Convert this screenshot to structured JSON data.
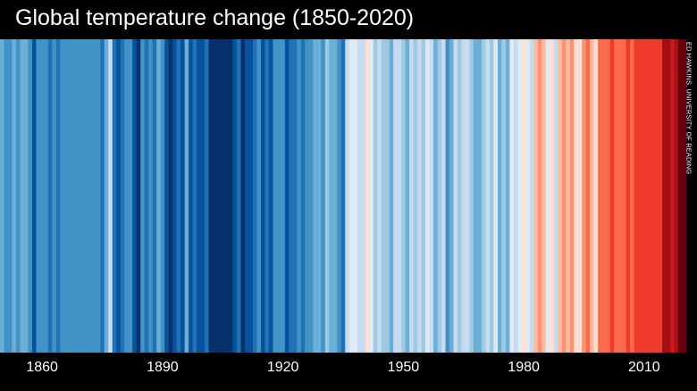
{
  "title": "Global temperature change (1850-2020)",
  "credit": "ED HAWKINS, UNIVERSITY OF READING",
  "chart_data": {
    "type": "heatmap",
    "title": "Global temperature change (1850-2020)",
    "xlabel": "",
    "ylabel": "",
    "x_start": 1850,
    "x_end": 2020,
    "xticks": [
      1860,
      1890,
      1920,
      1950,
      1980,
      2010
    ],
    "color_scale": [
      "#08306b",
      "#08519c",
      "#2171b5",
      "#4292c6",
      "#6baed6",
      "#9ecae1",
      "#c6dbef",
      "#deebf7",
      "#fee0d2",
      "#fcbba1",
      "#fc9272",
      "#fb6a4a",
      "#ef3b2c",
      "#cb181d",
      "#a50f15",
      "#67000d"
    ],
    "value_range": [
      0,
      15
    ],
    "values": [
      4,
      3,
      3,
      4,
      3,
      4,
      4,
      3,
      1,
      3,
      3,
      3,
      2,
      3,
      2,
      3,
      3,
      3,
      3,
      3,
      3,
      3,
      3,
      3,
      3,
      2,
      4,
      6,
      2,
      1,
      2,
      3,
      3,
      1,
      0,
      3,
      2,
      3,
      2,
      4,
      3,
      1,
      0,
      1,
      2,
      1,
      4,
      1,
      2,
      1,
      1,
      2,
      0,
      0,
      0,
      0,
      0,
      0,
      1,
      2,
      0,
      1,
      1,
      2,
      3,
      1,
      2,
      1,
      3,
      3,
      3,
      1,
      2,
      2,
      3,
      2,
      3,
      3,
      4,
      4,
      3,
      5,
      4,
      4,
      3,
      2,
      6,
      7,
      7,
      6,
      6,
      8,
      7,
      5,
      6,
      5,
      5,
      4,
      6,
      6,
      5,
      4,
      6,
      5,
      6,
      5,
      7,
      6,
      4,
      5,
      6,
      3,
      4,
      6,
      5,
      6,
      6,
      5,
      4,
      4,
      5,
      6,
      5,
      7,
      4,
      5,
      4,
      7,
      6,
      7,
      8,
      7,
      6,
      9,
      10,
      9,
      7,
      8,
      6,
      9,
      10,
      9,
      10,
      8,
      8,
      10,
      11,
      9,
      8,
      11,
      11,
      11,
      12,
      11,
      11,
      11,
      12,
      11,
      12,
      12,
      12,
      12,
      12,
      12,
      12,
      14,
      14,
      13,
      14,
      15,
      15
    ]
  }
}
